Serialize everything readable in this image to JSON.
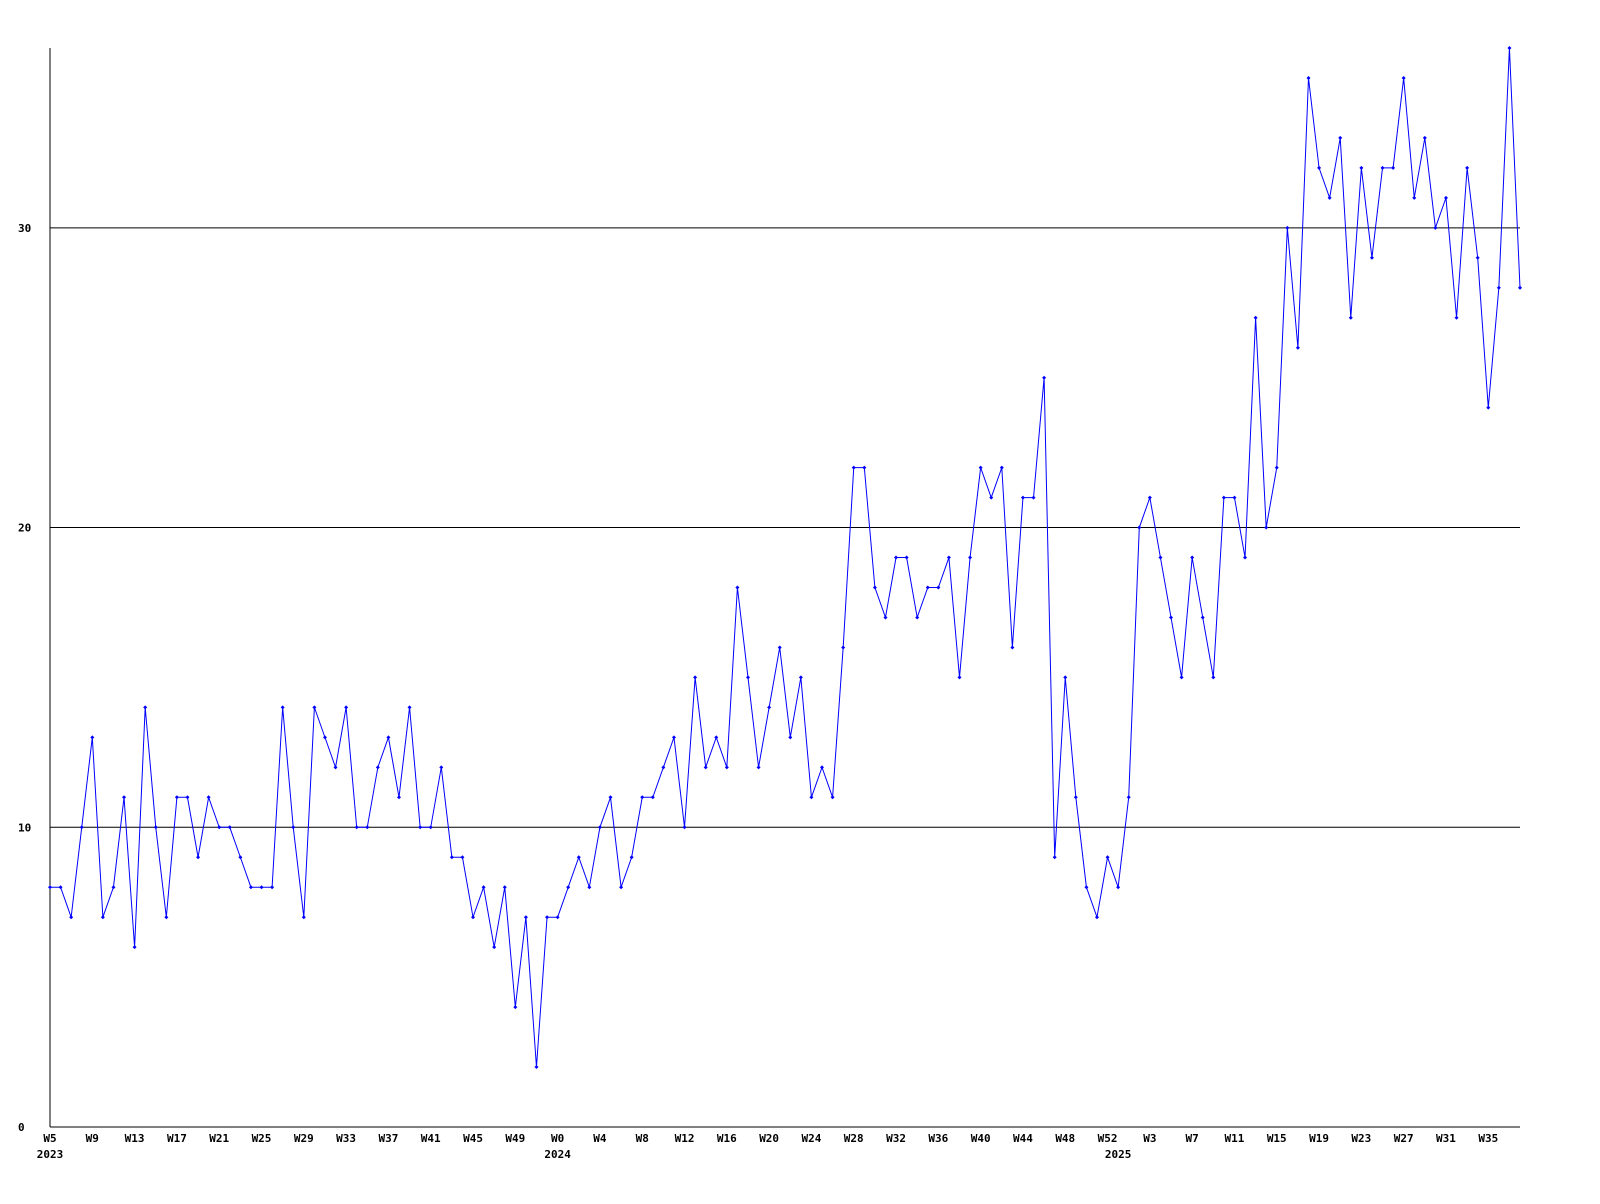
{
  "chart_data": {
    "type": "line",
    "categories": [
      "W5",
      null,
      null,
      null,
      "W9",
      null,
      null,
      null,
      "W13",
      null,
      null,
      null,
      "W17",
      null,
      null,
      null,
      "W21",
      null,
      null,
      null,
      "W25",
      null,
      null,
      null,
      "W29",
      null,
      null,
      null,
      "W33",
      null,
      null,
      null,
      "W37",
      null,
      null,
      null,
      "W41",
      null,
      null,
      null,
      "W45",
      null,
      null,
      null,
      "W49",
      null,
      null,
      null,
      "W0",
      null,
      null,
      null,
      "W4",
      null,
      null,
      null,
      "W8",
      null,
      null,
      null,
      "W12",
      null,
      null,
      null,
      "W16",
      null,
      null,
      null,
      "W20",
      null,
      null,
      null,
      "W24",
      null,
      null,
      null,
      "W28",
      null,
      null,
      null,
      "W32",
      null,
      null,
      null,
      "W36",
      null,
      null,
      null,
      "W40",
      null,
      null,
      null,
      "W44",
      null,
      null,
      null,
      "W48",
      null,
      null,
      null,
      "W52",
      null,
      null,
      null,
      "W3",
      null,
      null,
      null,
      "W7",
      null,
      null,
      null,
      "W11",
      null,
      null,
      null,
      "W15",
      null,
      null,
      null,
      "W19",
      null,
      null,
      null,
      "W23",
      null,
      null,
      null,
      "W27",
      null,
      null,
      null,
      "W31",
      null,
      null,
      null,
      "W35",
      null,
      null,
      null
    ],
    "years": [
      "2023",
      null,
      null,
      null,
      null,
      null,
      null,
      null,
      null,
      null,
      null,
      null,
      null,
      null,
      null,
      null,
      null,
      null,
      null,
      null,
      null,
      null,
      null,
      null,
      null,
      null,
      null,
      null,
      null,
      null,
      null,
      null,
      null,
      null,
      null,
      null,
      null,
      null,
      null,
      null,
      null,
      null,
      null,
      null,
      null,
      null,
      null,
      null,
      "2024",
      null,
      null,
      null,
      null,
      null,
      null,
      null,
      null,
      null,
      null,
      null,
      null,
      null,
      null,
      null,
      null,
      null,
      null,
      null,
      null,
      null,
      null,
      null,
      null,
      null,
      null,
      null,
      null,
      null,
      null,
      null,
      null,
      null,
      null,
      null,
      null,
      null,
      null,
      null,
      null,
      null,
      null,
      null,
      null,
      null,
      null,
      null,
      null,
      null,
      null,
      null,
      null,
      "2025",
      null,
      null,
      null,
      null,
      null,
      null,
      null,
      null,
      null,
      null,
      null,
      null,
      null,
      null,
      null,
      null,
      null,
      null,
      null,
      null,
      null,
      null,
      null,
      null,
      null,
      null,
      null,
      null,
      null,
      null,
      null,
      null,
      null,
      null,
      null,
      null,
      null,
      null
    ],
    "series": [
      {
        "color": "#0000ff",
        "values": [
          8,
          8,
          7,
          10,
          13,
          7,
          8,
          11,
          6,
          14,
          10,
          7,
          11,
          11,
          9,
          11,
          10,
          10,
          9,
          8,
          8,
          8,
          14,
          10,
          7,
          14,
          13,
          12,
          14,
          10,
          10,
          12,
          13,
          11,
          14,
          10,
          10,
          12,
          9,
          9,
          7,
          8,
          6,
          8,
          4,
          7,
          2,
          7,
          7,
          8,
          9,
          8,
          10,
          11,
          8,
          9,
          11,
          11,
          12,
          13,
          10,
          15,
          12,
          13,
          12,
          18,
          15,
          12,
          14,
          16,
          13,
          15,
          11,
          12,
          11,
          16,
          22,
          22,
          18,
          17,
          19,
          19,
          17,
          18,
          18,
          19,
          15,
          19,
          22,
          21,
          22,
          16,
          21,
          21,
          25,
          9,
          15,
          11,
          8,
          7,
          9,
          8,
          11,
          20,
          21,
          19,
          17,
          15,
          19,
          17,
          15,
          21,
          21,
          19,
          27,
          20,
          22,
          30,
          26,
          35,
          32,
          31,
          33,
          27,
          32,
          29,
          32,
          32,
          35,
          31,
          33,
          30,
          31,
          27,
          32,
          29,
          24,
          28,
          36,
          28
        ]
      }
    ],
    "ylim": [
      0,
      36
    ],
    "yticks": [
      0,
      10,
      20,
      30
    ],
    "grid": true
  }
}
